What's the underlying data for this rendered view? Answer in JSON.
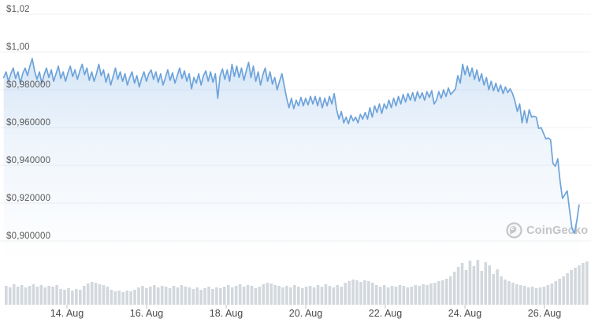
{
  "chart_data": {
    "type": "line",
    "grid": "horizontal-only",
    "legend": "none",
    "y_axis": {
      "ticks": [
        {
          "label": "$1,02",
          "value": 1.02
        },
        {
          "label": "$1,00",
          "value": 1.0
        },
        {
          "label": "$0,980000",
          "value": 0.98
        },
        {
          "label": "$0,960000",
          "value": 0.96
        },
        {
          "label": "$0,940000",
          "value": 0.94
        },
        {
          "label": "$0,920000",
          "value": 0.92
        },
        {
          "label": "$0,900000",
          "value": 0.9
        }
      ]
    },
    "x_axis": {
      "ticks": [
        {
          "label": "14. Aug",
          "day": 14
        },
        {
          "label": "16. Aug",
          "day": 16
        },
        {
          "label": "18. Aug",
          "day": 18
        },
        {
          "label": "20. Aug",
          "day": 20
        },
        {
          "label": "22. Aug",
          "day": 22
        },
        {
          "label": "24. Aug",
          "day": 24
        },
        {
          "label": "26. Aug",
          "day": 26
        }
      ]
    },
    "price_series": {
      "name": "price-usd",
      "x_start_day": 12.41,
      "x_end_day": 26.87,
      "prices": [
        0.9865,
        0.9895,
        0.9845,
        0.9885,
        0.9915,
        0.986,
        0.9895,
        0.9835,
        0.9885,
        0.9915,
        0.9875,
        0.9925,
        0.9965,
        0.99,
        0.9855,
        0.9895,
        0.9835,
        0.988,
        0.9915,
        0.9865,
        0.9905,
        0.9845,
        0.9885,
        0.9925,
        0.986,
        0.9895,
        0.9845,
        0.989,
        0.9925,
        0.987,
        0.9905,
        0.9855,
        0.99,
        0.9935,
        0.988,
        0.9915,
        0.985,
        0.9895,
        0.9845,
        0.9885,
        0.9935,
        0.9875,
        0.9905,
        0.984,
        0.9885,
        0.9825,
        0.987,
        0.9915,
        0.9855,
        0.9895,
        0.9845,
        0.9885,
        0.9825,
        0.9865,
        0.9895,
        0.9835,
        0.9875,
        0.9815,
        0.986,
        0.9895,
        0.9845,
        0.9885,
        0.9905,
        0.9855,
        0.9895,
        0.984,
        0.9885,
        0.9825,
        0.9865,
        0.9905,
        0.985,
        0.989,
        0.9835,
        0.9875,
        0.9915,
        0.986,
        0.99,
        0.9845,
        0.9885,
        0.9805,
        0.9865,
        0.9835,
        0.9885,
        0.9825,
        0.9875,
        0.99,
        0.9845,
        0.9895,
        0.984,
        0.9885,
        0.9755,
        0.9875,
        0.991,
        0.9855,
        0.9905,
        0.9845,
        0.9935,
        0.987,
        0.9925,
        0.9865,
        0.9915,
        0.985,
        0.99,
        0.9945,
        0.9865,
        0.9925,
        0.9845,
        0.9895,
        0.9825,
        0.988,
        0.9915,
        0.9845,
        0.9895,
        0.983,
        0.9865,
        0.98,
        0.9845,
        0.9885,
        0.982,
        0.9755,
        0.9705,
        0.9755,
        0.97,
        0.9745,
        0.9715,
        0.976,
        0.9715,
        0.9755,
        0.972,
        0.9765,
        0.9725,
        0.9765,
        0.9715,
        0.976,
        0.9705,
        0.9755,
        0.9715,
        0.9765,
        0.9725,
        0.978,
        0.9695,
        0.9645,
        0.9685,
        0.9625,
        0.9655,
        0.962,
        0.9665,
        0.9635,
        0.9655,
        0.9625,
        0.967,
        0.9645,
        0.968,
        0.9645,
        0.9705,
        0.9655,
        0.9715,
        0.968,
        0.9725,
        0.9675,
        0.9725,
        0.97,
        0.9745,
        0.9705,
        0.9755,
        0.9715,
        0.9765,
        0.9725,
        0.9775,
        0.9735,
        0.978,
        0.9745,
        0.9785,
        0.974,
        0.979,
        0.9755,
        0.9785,
        0.9745,
        0.979,
        0.976,
        0.9795,
        0.9725,
        0.9745,
        0.979,
        0.9755,
        0.98,
        0.9765,
        0.981,
        0.9775,
        0.979,
        0.9805,
        0.9875,
        0.9835,
        0.9935,
        0.988,
        0.9925,
        0.987,
        0.9915,
        0.9855,
        0.9905,
        0.9845,
        0.9885,
        0.9825,
        0.9865,
        0.98,
        0.9845,
        0.9795,
        0.9835,
        0.979,
        0.9825,
        0.978,
        0.9815,
        0.9785,
        0.9805,
        0.978,
        0.974,
        0.9685,
        0.9725,
        0.9625,
        0.969,
        0.9625,
        0.9695,
        0.9655,
        0.966,
        0.9655,
        0.9595,
        0.96,
        0.957,
        0.954,
        0.9545,
        0.9535,
        0.941,
        0.9395,
        0.9435,
        0.9315,
        0.9225,
        0.9245,
        0.9265,
        0.916,
        0.9065,
        0.904,
        0.9105,
        0.919
      ]
    },
    "volume_series": {
      "name": "volume",
      "relative_heights": [
        24,
        22,
        26,
        23,
        25,
        22,
        24,
        26,
        23,
        25,
        22,
        24,
        23,
        25,
        20,
        19,
        21,
        18,
        20,
        19,
        24,
        27,
        29,
        28,
        26,
        25,
        23,
        19,
        17,
        18,
        16,
        18,
        17,
        19,
        22,
        24,
        21,
        23,
        25,
        22,
        24,
        23,
        21,
        24,
        22,
        25,
        23,
        22,
        20,
        22,
        19,
        21,
        23,
        20,
        22,
        21,
        23,
        25,
        22,
        24,
        26,
        23,
        25,
        24,
        21,
        23,
        26,
        28,
        27,
        25,
        24,
        22,
        24,
        22,
        25,
        23,
        21,
        23,
        24,
        22,
        25,
        23,
        26,
        24,
        22,
        25,
        23,
        28,
        30,
        32,
        31,
        29,
        31,
        30,
        28,
        25,
        23,
        25,
        22,
        24,
        23,
        25,
        24,
        22,
        23,
        25,
        24,
        26,
        25,
        27,
        28,
        30,
        31,
        33,
        36,
        42,
        48,
        53,
        44,
        56,
        49,
        57,
        43,
        54,
        50,
        39,
        45,
        36,
        32,
        30,
        28,
        26,
        25,
        24,
        22,
        23,
        21,
        22,
        23,
        25,
        27,
        30,
        33,
        36,
        40,
        44,
        47,
        50,
        53,
        55
      ]
    },
    "colors": {
      "line": "#6ea3da",
      "area_fill": "#79ade4",
      "volume_bar": "#d3d8dd",
      "gridline": "#f0f0f0",
      "tick_mark": "#c4c4c4",
      "y_label": "#595959",
      "x_label": "#4a4a4a",
      "watermark": "#c5c5c5"
    }
  },
  "watermark": {
    "text": "CoinGecko"
  }
}
